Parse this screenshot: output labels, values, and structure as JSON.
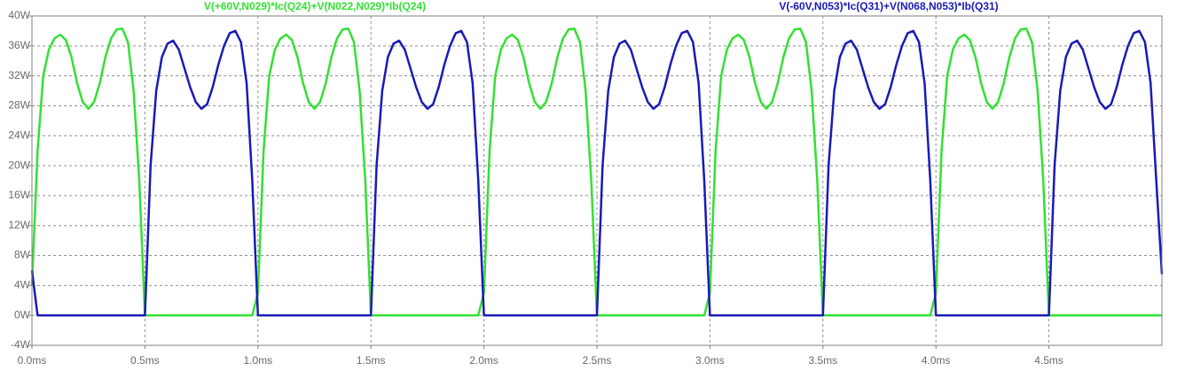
{
  "chart_data": {
    "type": "line",
    "x": [
      0,
      0.025,
      0.05,
      0.075,
      0.1,
      0.125,
      0.15,
      0.175,
      0.2,
      0.225,
      0.25,
      0.275,
      0.3,
      0.325,
      0.35,
      0.375,
      0.4,
      0.425,
      0.45,
      0.475,
      0.5,
      0.525,
      0.55,
      0.575,
      0.6,
      0.625,
      0.65,
      0.675,
      0.7,
      0.725,
      0.75,
      0.775,
      0.8,
      0.825,
      0.85,
      0.875,
      0.9,
      0.925,
      0.95,
      0.975,
      1,
      1.025,
      1.05,
      1.075,
      1.1,
      1.125,
      1.15,
      1.175,
      1.2,
      1.225,
      1.25,
      1.275,
      1.3,
      1.325,
      1.35,
      1.375,
      1.4,
      1.425,
      1.45,
      1.475,
      1.5,
      1.525,
      1.55,
      1.575,
      1.6,
      1.625,
      1.65,
      1.675,
      1.7,
      1.725,
      1.75,
      1.775,
      1.8,
      1.825,
      1.85,
      1.875,
      1.9,
      1.925,
      1.95,
      1.975,
      2,
      2.025,
      2.05,
      2.075,
      2.1,
      2.125,
      2.15,
      2.175,
      2.2,
      2.225,
      2.25,
      2.275,
      2.3,
      2.325,
      2.35,
      2.375,
      2.4,
      2.425,
      2.45,
      2.475,
      2.5,
      2.525,
      2.55,
      2.575,
      2.6,
      2.625,
      2.65,
      2.675,
      2.7,
      2.725,
      2.75,
      2.775,
      2.8,
      2.825,
      2.85,
      2.875,
      2.9,
      2.925,
      2.95,
      2.975,
      3,
      3.025,
      3.05,
      3.075,
      3.1,
      3.125,
      3.15,
      3.175,
      3.2,
      3.225,
      3.25,
      3.275,
      3.3,
      3.325,
      3.35,
      3.375,
      3.4,
      3.425,
      3.45,
      3.475,
      3.5,
      3.525,
      3.55,
      3.575,
      3.6,
      3.625,
      3.65,
      3.675,
      3.7,
      3.725,
      3.75,
      3.775,
      3.8,
      3.825,
      3.85,
      3.875,
      3.9,
      3.925,
      3.95,
      3.975,
      4,
      4.025,
      4.05,
      4.075,
      4.1,
      4.125,
      4.15,
      4.175,
      4.2,
      4.225,
      4.25,
      4.275,
      4.3,
      4.325,
      4.35,
      4.375,
      4.4,
      4.425,
      4.45,
      4.475,
      4.5,
      4.525,
      4.55,
      4.575,
      4.6,
      4.625,
      4.65,
      4.675,
      4.7,
      4.725,
      4.75,
      4.775,
      4.8,
      4.825,
      4.85,
      4.875,
      4.9,
      4.925,
      4.95,
      4.975,
      5
    ],
    "series": [
      {
        "name": "V(+60V,N029)*Ic(Q24)+V(N022,N029)*Ib(Q24)",
        "color": "#33e033",
        "values": [
          4,
          22,
          32,
          35.5,
          37,
          37.5,
          36.8,
          34.5,
          31,
          28.5,
          27.6,
          28.5,
          31,
          34.5,
          37,
          38.2,
          38.3,
          36.5,
          30,
          18,
          0,
          0,
          0,
          0,
          0,
          0,
          0,
          0,
          0,
          0,
          0,
          0,
          0,
          0,
          0,
          0,
          0,
          0,
          0,
          0,
          3,
          22,
          32,
          35.5,
          37,
          37.5,
          36.8,
          34.5,
          31,
          28.5,
          27.6,
          28.5,
          31,
          34.5,
          37,
          38.2,
          38.3,
          36.5,
          30,
          18,
          0,
          0,
          0,
          0,
          0,
          0,
          0,
          0,
          0,
          0,
          0,
          0,
          0,
          0,
          0,
          0,
          0,
          0,
          0,
          0,
          3,
          22,
          32,
          35.5,
          37,
          37.5,
          36.8,
          34.5,
          31,
          28.5,
          27.6,
          28.5,
          31,
          34.5,
          37,
          38.2,
          38.3,
          36.5,
          30,
          18,
          0,
          0,
          0,
          0,
          0,
          0,
          0,
          0,
          0,
          0,
          0,
          0,
          0,
          0,
          0,
          0,
          0,
          0,
          0,
          0,
          3,
          22,
          32,
          35.5,
          37,
          37.5,
          36.8,
          34.5,
          31,
          28.5,
          27.6,
          28.5,
          31,
          34.5,
          37,
          38.2,
          38.3,
          36.5,
          30,
          18,
          0,
          0,
          0,
          0,
          0,
          0,
          0,
          0,
          0,
          0,
          0,
          0,
          0,
          0,
          0,
          0,
          0,
          0,
          0,
          0,
          3,
          22,
          32,
          35.5,
          37,
          37.5,
          36.8,
          34.5,
          31,
          28.5,
          27.6,
          28.5,
          31,
          34.5,
          37,
          38.2,
          38.3,
          36.5,
          30,
          18,
          0,
          0,
          0,
          0,
          0,
          0,
          0,
          0,
          0,
          0,
          0,
          0,
          0,
          0,
          0,
          0,
          0,
          0,
          0,
          0,
          0
        ]
      },
      {
        "name": "V(-60V,N053)*Ic(Q31)+V(N068,N053)*Ib(Q31)",
        "color": "#1a1ab8",
        "values": [
          6,
          0,
          0,
          0,
          0,
          0,
          0,
          0,
          0,
          0,
          0,
          0,
          0,
          0,
          0,
          0,
          0,
          0,
          0,
          0,
          0,
          20,
          30,
          34.5,
          36.3,
          36.7,
          35.5,
          33,
          30.5,
          28.5,
          27.6,
          28.2,
          30.5,
          33.5,
          36,
          37.7,
          38,
          36.5,
          31,
          18,
          0,
          0,
          0,
          0,
          0,
          0,
          0,
          0,
          0,
          0,
          0,
          0,
          0,
          0,
          0,
          0,
          0,
          0,
          0,
          0,
          0,
          20,
          30,
          34.5,
          36.3,
          36.7,
          35.5,
          33,
          30.5,
          28.5,
          27.6,
          28.2,
          30.5,
          33.5,
          36,
          37.7,
          38,
          36.5,
          31,
          18,
          0,
          0,
          0,
          0,
          0,
          0,
          0,
          0,
          0,
          0,
          0,
          0,
          0,
          0,
          0,
          0,
          0,
          0,
          0,
          0,
          0,
          20,
          30,
          34.5,
          36.3,
          36.7,
          35.5,
          33,
          30.5,
          28.5,
          27.6,
          28.2,
          30.5,
          33.5,
          36,
          37.7,
          38,
          36.5,
          31,
          18,
          0,
          0,
          0,
          0,
          0,
          0,
          0,
          0,
          0,
          0,
          0,
          0,
          0,
          0,
          0,
          0,
          0,
          0,
          0,
          0,
          0,
          20,
          30,
          34.5,
          36.3,
          36.7,
          35.5,
          33,
          30.5,
          28.5,
          27.6,
          28.2,
          30.5,
          33.5,
          36,
          37.7,
          38,
          36.5,
          31,
          18,
          0,
          0,
          0,
          0,
          0,
          0,
          0,
          0,
          0,
          0,
          0,
          0,
          0,
          0,
          0,
          0,
          0,
          0,
          0,
          0,
          0,
          20,
          30,
          34.5,
          36.3,
          36.7,
          35.5,
          33,
          30.5,
          28.5,
          27.6,
          28.2,
          30.5,
          33.5,
          36,
          37.7,
          38,
          36.5,
          31,
          18,
          5.5
        ]
      }
    ],
    "xlim": [
      0,
      5
    ],
    "xticks": [
      {
        "value": 0,
        "label": "0.0ms"
      },
      {
        "value": 0.5,
        "label": "0.5ms"
      },
      {
        "value": 1,
        "label": "1.0ms"
      },
      {
        "value": 1.5,
        "label": "1.5ms"
      },
      {
        "value": 2,
        "label": "2.0ms"
      },
      {
        "value": 2.5,
        "label": "2.5ms"
      },
      {
        "value": 3,
        "label": "3.0ms"
      },
      {
        "value": 3.5,
        "label": "3.5ms"
      },
      {
        "value": 4,
        "label": "4.0ms"
      },
      {
        "value": 4.5,
        "label": "4.5ms"
      }
    ],
    "ylim": [
      -4,
      40
    ],
    "yticks": [
      {
        "value": -4,
        "label": "-4W"
      },
      {
        "value": 0,
        "label": "0W"
      },
      {
        "value": 4,
        "label": "4W"
      },
      {
        "value": 8,
        "label": "8W"
      },
      {
        "value": 12,
        "label": "12W"
      },
      {
        "value": 16,
        "label": "16W"
      },
      {
        "value": 20,
        "label": "20W"
      },
      {
        "value": 24,
        "label": "24W"
      },
      {
        "value": 28,
        "label": "28W"
      },
      {
        "value": 32,
        "label": "32W"
      },
      {
        "value": 36,
        "label": "36W"
      },
      {
        "value": 40,
        "label": "40W"
      }
    ],
    "grid": true
  }
}
